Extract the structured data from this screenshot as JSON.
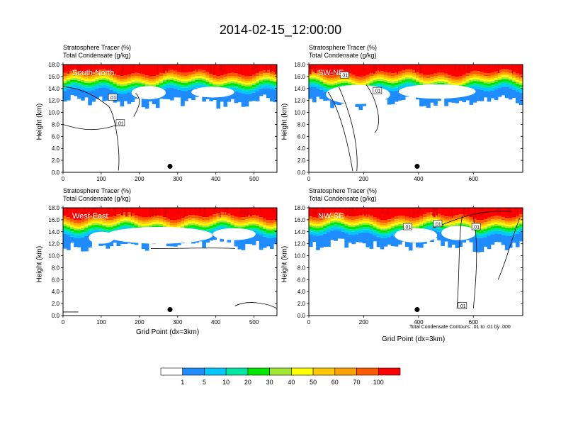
{
  "title": "2014-02-15_12:00:00",
  "colors": {
    "levels": [
      "#ffffff",
      "#1e8cff",
      "#00c8ff",
      "#00e6a0",
      "#00e600",
      "#a0e632",
      "#ffff00",
      "#ffc800",
      "#ffa000",
      "#ff5a00",
      "#ff0000"
    ],
    "contour": "#000000",
    "marker": "#000000"
  },
  "colorbar": {
    "labels": [
      "1",
      "5",
      "10",
      "20",
      "30",
      "40",
      "50",
      "60",
      "70",
      "100"
    ]
  },
  "chart_data": [
    {
      "type": "heatmap",
      "field_label": "Stratosphere Tracer   (%)",
      "contour_label": "Total Condensate   (g/kg)",
      "panel_label": "South-North",
      "ylabel": "Height (km)",
      "xlabel": "",
      "ylim": [
        0,
        18
      ],
      "xlim": [
        0,
        560
      ],
      "xticks": [
        "0",
        "100",
        "200",
        "300",
        "400",
        "500"
      ],
      "yticks": [
        "0.0",
        "2.0",
        "4.0",
        "6.0",
        "8.0",
        "10.0",
        "12.0",
        "14.0",
        "16.0",
        "18.0"
      ],
      "contour_labels": [
        ".01",
        ".01"
      ],
      "marker_x": 280,
      "marker_y": 1.0
    },
    {
      "type": "heatmap",
      "field_label": "Stratosphere Tracer   (%)",
      "contour_label": "Total Condensate   (g/kg)",
      "panel_label": "SW-NE",
      "ylabel": "Height (km)",
      "xlabel": "",
      "ylim": [
        0,
        18
      ],
      "xlim": [
        0,
        780
      ],
      "xticks": [
        "0",
        "200",
        "400",
        "600"
      ],
      "yticks": [
        "0.0",
        "2.0",
        "4.0",
        "6.0",
        "8.0",
        "10.0",
        "12.0",
        "14.0",
        "16.0",
        "18.0"
      ],
      "contour_labels": [
        ".01",
        ".01"
      ],
      "marker_x": 395,
      "marker_y": 1.0
    },
    {
      "type": "heatmap",
      "field_label": "Stratosphere Tracer   (%)",
      "contour_label": "Total Condensate   (g/kg)",
      "panel_label": "West-East",
      "ylabel": "Height (km)",
      "xlabel": "Grid Point (dx=3km)",
      "ylim": [
        0,
        18
      ],
      "xlim": [
        0,
        560
      ],
      "xticks": [
        "0",
        "100",
        "200",
        "300",
        "400",
        "500"
      ],
      "yticks": [
        "0.0",
        "2.0",
        "4.0",
        "6.0",
        "8.0",
        "10.0",
        "12.0",
        "14.0",
        "16.0",
        "18.0"
      ],
      "contour_labels": [],
      "marker_x": 280,
      "marker_y": 1.0
    },
    {
      "type": "heatmap",
      "field_label": "Stratosphere Tracer   (%)",
      "contour_label": "Total Condensate   (g/kg)",
      "panel_label": "NW-SE",
      "ylabel": "Height (km)",
      "xlabel": "Grid Point (dx=3km)",
      "ylim": [
        0,
        18
      ],
      "xlim": [
        0,
        780
      ],
      "xticks": [
        "0",
        "200",
        "400",
        "600"
      ],
      "yticks": [
        "0.0",
        "2.0",
        "4.0",
        "6.0",
        "8.0",
        "10.0",
        "12.0",
        "14.0",
        "16.0",
        "18.0"
      ],
      "contour_labels": [
        ".01",
        ".01",
        ".01",
        ".01"
      ],
      "marker_x": 395,
      "marker_y": 1.0,
      "note": "Total Condensate Contours: .01 to .01 by .000"
    }
  ]
}
